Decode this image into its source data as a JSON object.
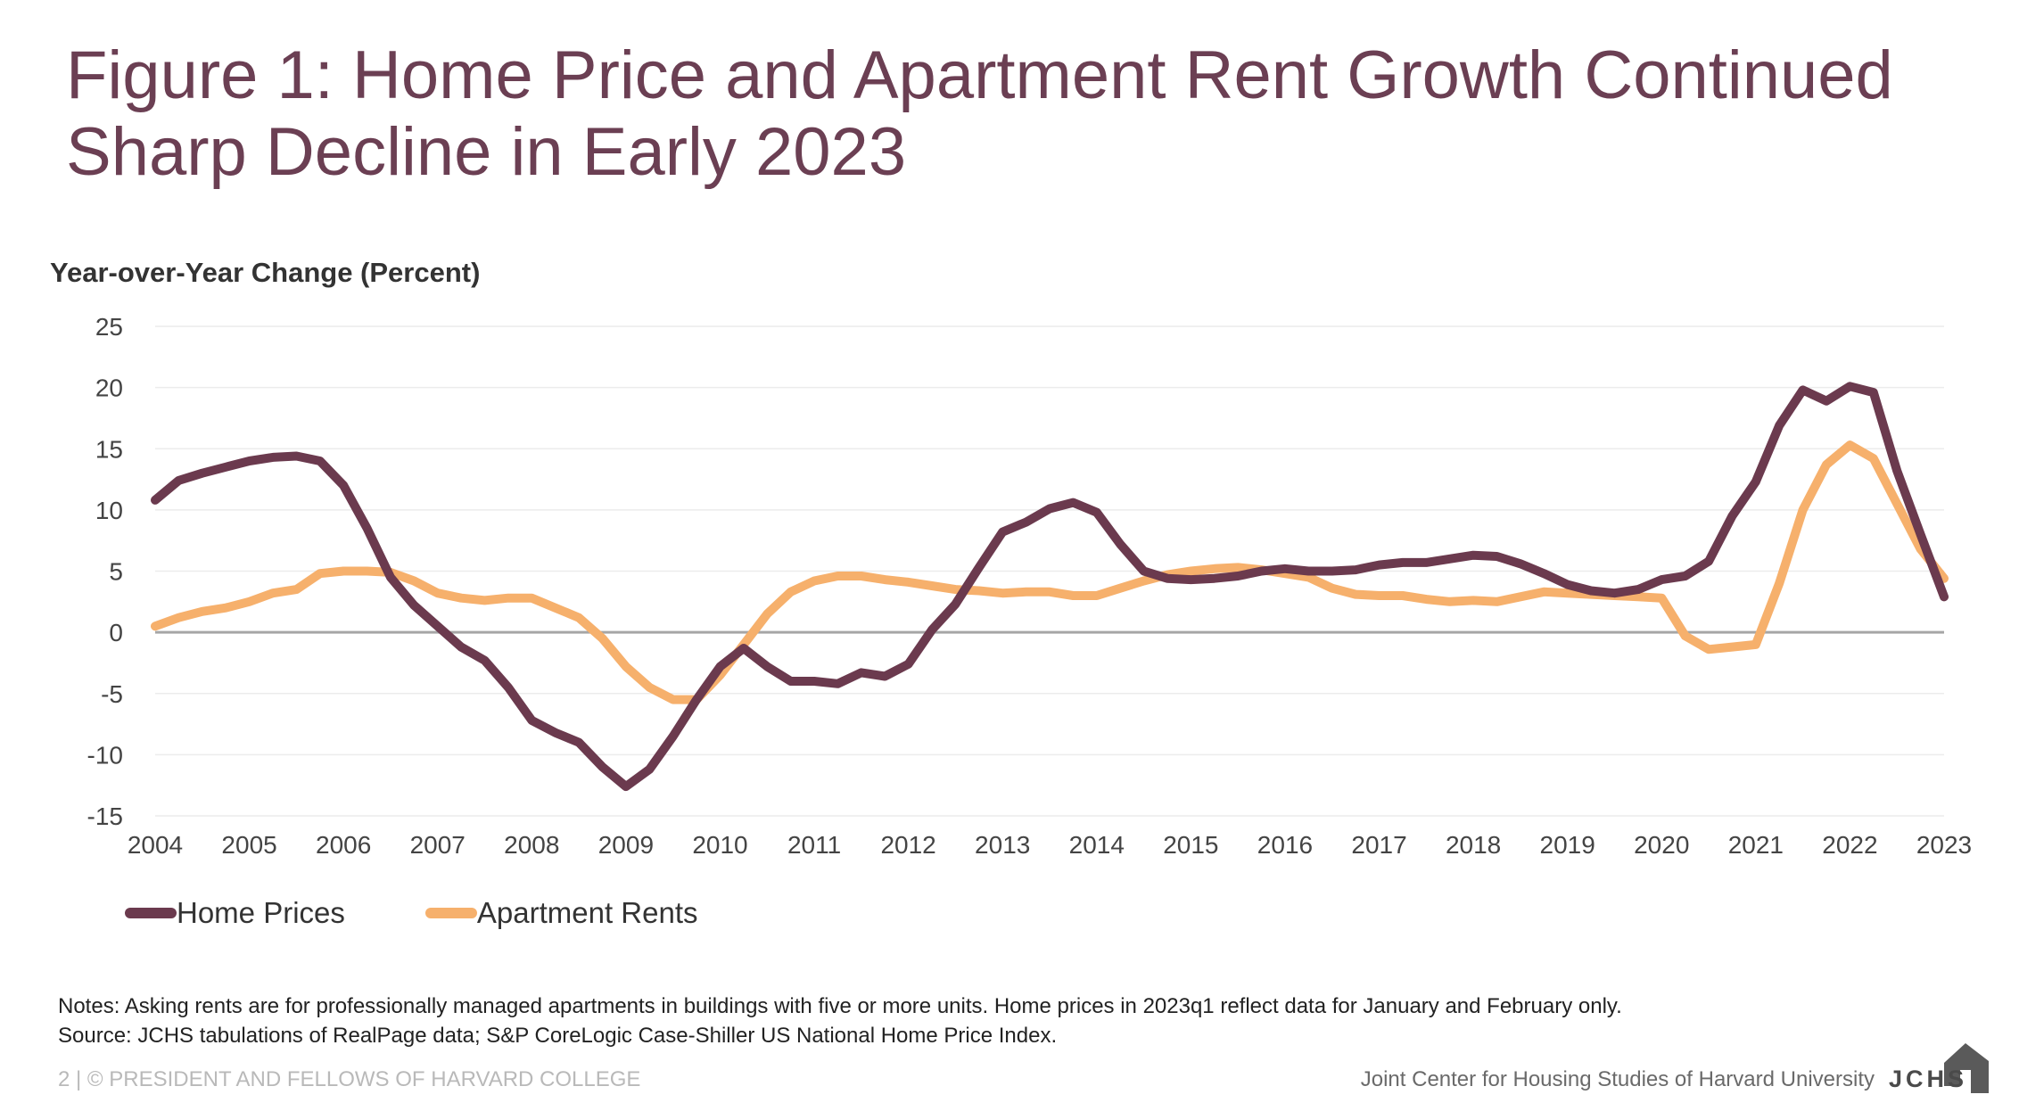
{
  "title_line1": "Figure 1: Home Price and Apartment Rent Growth Continued",
  "title_line2": "Sharp Decline in Early 2023",
  "notes": "Notes: Asking rents are for professionally managed apartments in buildings with five or more units. Home prices in 2023q1 reflect data for January and February only.",
  "source": "Source: JCHS tabulations of RealPage data; S&P CoreLogic Case-Shiller US National Home Price Index.",
  "footer_left": "2 | © PRESIDENT AND FELLOWS OF HARVARD COLLEGE",
  "footer_right": "Joint Center for Housing Studies of Harvard University",
  "logo_text": "JCHS",
  "colors": {
    "title": "#6b3f53",
    "home_prices": "#6b3a4e",
    "apartment_rents": "#f6b06c",
    "zero_line": "#a6a6a6",
    "grid": "#ececec"
  },
  "chart_data": {
    "type": "line",
    "title": "Figure 1: Home Price and Apartment Rent Growth Continued Sharp Decline in Early 2023",
    "ylabel": "Year-over-Year Change (Percent)",
    "xlabel": "",
    "ylim": [
      -15,
      25
    ],
    "yticks": [
      -15,
      -10,
      -5,
      0,
      5,
      10,
      15,
      20,
      25
    ],
    "xlim": [
      2004,
      2023
    ],
    "xticks": [
      2004,
      2005,
      2006,
      2007,
      2008,
      2009,
      2010,
      2011,
      2012,
      2013,
      2014,
      2015,
      2016,
      2017,
      2018,
      2019,
      2020,
      2021,
      2022,
      2023
    ],
    "grid": true,
    "legend_position": "bottom-left",
    "series": [
      {
        "name": "Home Prices",
        "color": "#6b3a4e",
        "x": [
          2004.0,
          2004.25,
          2004.5,
          2004.75,
          2005.0,
          2005.25,
          2005.5,
          2005.75,
          2006.0,
          2006.25,
          2006.5,
          2006.75,
          2007.0,
          2007.25,
          2007.5,
          2007.75,
          2008.0,
          2008.25,
          2008.5,
          2008.75,
          2009.0,
          2009.25,
          2009.5,
          2009.75,
          2010.0,
          2010.25,
          2010.5,
          2010.75,
          2011.0,
          2011.25,
          2011.5,
          2011.75,
          2012.0,
          2012.25,
          2012.5,
          2012.75,
          2013.0,
          2013.25,
          2013.5,
          2013.75,
          2014.0,
          2014.25,
          2014.5,
          2014.75,
          2015.0,
          2015.25,
          2015.5,
          2015.75,
          2016.0,
          2016.25,
          2016.5,
          2016.75,
          2017.0,
          2017.25,
          2017.5,
          2017.75,
          2018.0,
          2018.25,
          2018.5,
          2018.75,
          2019.0,
          2019.25,
          2019.5,
          2019.75,
          2020.0,
          2020.25,
          2020.5,
          2020.75,
          2021.0,
          2021.25,
          2021.5,
          2021.75,
          2022.0,
          2022.25,
          2022.5,
          2022.75,
          2023.0
        ],
        "y": [
          10.8,
          12.4,
          13.0,
          13.5,
          14.0,
          14.3,
          14.4,
          14.0,
          12.0,
          8.5,
          4.5,
          2.2,
          0.5,
          -1.2,
          -2.3,
          -4.5,
          -7.2,
          -8.2,
          -9.0,
          -11.0,
          -12.6,
          -11.2,
          -8.5,
          -5.5,
          -2.8,
          -1.3,
          -2.8,
          -4.0,
          -4.0,
          -4.2,
          -3.3,
          -3.6,
          -2.6,
          0.2,
          2.3,
          5.3,
          8.2,
          9.0,
          10.1,
          10.6,
          9.8,
          7.2,
          5.0,
          4.4,
          4.3,
          4.4,
          4.6,
          5.0,
          5.2,
          5.0,
          5.0,
          5.1,
          5.5,
          5.7,
          5.7,
          6.0,
          6.3,
          6.2,
          5.6,
          4.8,
          3.9,
          3.4,
          3.2,
          3.5,
          4.3,
          4.6,
          5.8,
          9.5,
          12.3,
          16.9,
          19.8,
          18.9,
          20.1,
          19.6,
          13.2,
          8.0,
          2.9
        ]
      },
      {
        "name": "Apartment Rents",
        "color": "#f6b06c",
        "x": [
          2004.0,
          2004.25,
          2004.5,
          2004.75,
          2005.0,
          2005.25,
          2005.5,
          2005.75,
          2006.0,
          2006.25,
          2006.5,
          2006.75,
          2007.0,
          2007.25,
          2007.5,
          2007.75,
          2008.0,
          2008.25,
          2008.5,
          2008.75,
          2009.0,
          2009.25,
          2009.5,
          2009.75,
          2010.0,
          2010.25,
          2010.5,
          2010.75,
          2011.0,
          2011.25,
          2011.5,
          2011.75,
          2012.0,
          2012.25,
          2012.5,
          2012.75,
          2013.0,
          2013.25,
          2013.5,
          2013.75,
          2014.0,
          2014.25,
          2014.5,
          2014.75,
          2015.0,
          2015.25,
          2015.5,
          2015.75,
          2016.0,
          2016.25,
          2016.5,
          2016.75,
          2017.0,
          2017.25,
          2017.5,
          2017.75,
          2018.0,
          2018.25,
          2018.5,
          2018.75,
          2019.0,
          2019.25,
          2019.5,
          2019.75,
          2020.0,
          2020.25,
          2020.5,
          2020.75,
          2021.0,
          2021.25,
          2021.5,
          2021.75,
          2022.0,
          2022.25,
          2022.5,
          2022.75,
          2023.0
        ],
        "y": [
          0.5,
          1.2,
          1.7,
          2.0,
          2.5,
          3.2,
          3.5,
          4.8,
          5.0,
          5.0,
          4.9,
          4.2,
          3.2,
          2.8,
          2.6,
          2.8,
          2.8,
          2.0,
          1.2,
          -0.5,
          -2.8,
          -4.5,
          -5.5,
          -5.5,
          -3.5,
          -1.0,
          1.5,
          3.3,
          4.2,
          4.6,
          4.6,
          4.3,
          4.1,
          3.8,
          3.5,
          3.4,
          3.2,
          3.3,
          3.3,
          3.0,
          3.0,
          3.6,
          4.2,
          4.7,
          5.0,
          5.2,
          5.3,
          5.1,
          4.8,
          4.5,
          3.6,
          3.1,
          3.0,
          3.0,
          2.7,
          2.5,
          2.6,
          2.5,
          2.9,
          3.3,
          3.2,
          3.1,
          3.0,
          2.9,
          2.8,
          -0.3,
          -1.4,
          -1.2,
          -1.0,
          4.0,
          10.0,
          13.7,
          15.3,
          14.2,
          10.5,
          6.8,
          4.4
        ]
      }
    ]
  }
}
